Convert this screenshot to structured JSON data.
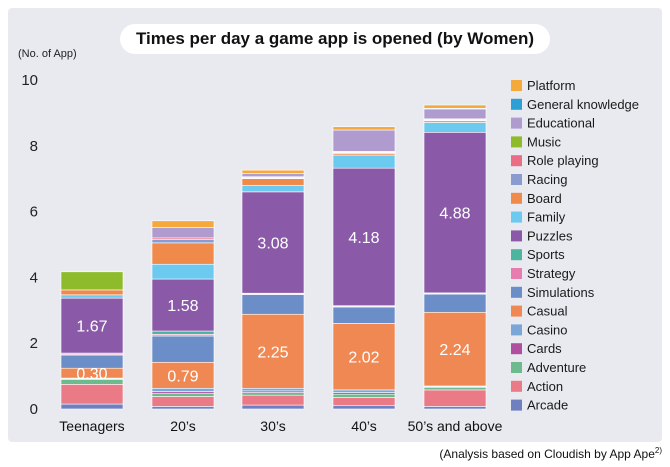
{
  "title": "Times per day a game app is opened (by Women)",
  "unit_label": "(No. of App)",
  "footnote": "(Analysis based on Cloudish by App Ape",
  "footnote_sup": "2)",
  "chart_data": {
    "type": "bar",
    "stacked": true,
    "categories": [
      "Teenagers",
      "20’s",
      "30’s",
      "40’s",
      "50’s and above"
    ],
    "ylim": [
      0,
      10
    ],
    "yticks": [
      0,
      2,
      4,
      6,
      8,
      10
    ],
    "ylabel": "(No. of App)",
    "legend_position": "right",
    "series": [
      {
        "name": "Arcade",
        "color": "#6f7fc0",
        "values": [
          0.15,
          0.08,
          0.12,
          0.1,
          0.08
        ]
      },
      {
        "name": "Action",
        "color": "#ea7a86",
        "values": [
          0.6,
          0.3,
          0.3,
          0.25,
          0.5
        ]
      },
      {
        "name": "Adventure",
        "color": "#6dba8f",
        "values": [
          0.15,
          0.1,
          0.08,
          0.1,
          0.08
        ]
      },
      {
        "name": "Cards",
        "color": "#b04fa0",
        "values": [
          0.02,
          0.05,
          0.05,
          0.05,
          0.02
        ]
      },
      {
        "name": "Casino",
        "color": "#7aa7d8",
        "values": [
          0.02,
          0.1,
          0.08,
          0.08,
          0.02
        ]
      },
      {
        "name": "Casual",
        "color": "#ef8852",
        "values": [
          0.3,
          0.79,
          2.25,
          2.02,
          2.24
        ]
      },
      {
        "name": "Simulations",
        "color": "#6b8ec8",
        "values": [
          0.4,
          0.8,
          0.6,
          0.5,
          0.55
        ]
      },
      {
        "name": "Strategy",
        "color": "#e97cae",
        "values": [
          0.03,
          0.05,
          0.02,
          0.02,
          0.02
        ]
      },
      {
        "name": "Sports",
        "color": "#4cb5a0",
        "values": [
          0.03,
          0.1,
          0.02,
          0.02,
          0.02
        ]
      },
      {
        "name": "Puzzles",
        "color": "#8a5aa8",
        "values": [
          1.67,
          1.58,
          3.08,
          4.18,
          4.88
        ]
      },
      {
        "name": "Family",
        "color": "#6cc9ef",
        "values": [
          0.1,
          0.45,
          0.2,
          0.4,
          0.3
        ]
      },
      {
        "name": "Board",
        "color": "#f08a4b",
        "values": [
          0.15,
          0.65,
          0.2,
          0.05,
          0.05
        ]
      },
      {
        "name": "Racing",
        "color": "#8a9bd0",
        "values": [
          0.0,
          0.1,
          0.02,
          0.02,
          0.02
        ]
      },
      {
        "name": "Role playing",
        "color": "#ea6d85",
        "values": [
          0.0,
          0.05,
          0.02,
          0.02,
          0.02
        ]
      },
      {
        "name": "Music",
        "color": "#8dbb2b",
        "values": [
          0.55,
          0.0,
          0.02,
          0.02,
          0.02
        ]
      },
      {
        "name": "Educational",
        "color": "#b09bcf",
        "values": [
          0.0,
          0.32,
          0.1,
          0.65,
          0.3
        ]
      },
      {
        "name": "General knowledge",
        "color": "#2b9fd6",
        "values": [
          0.0,
          0.0,
          0.0,
          0.0,
          0.02
        ]
      },
      {
        "name": "Platform",
        "color": "#f5a93a",
        "values": [
          0.0,
          0.2,
          0.1,
          0.1,
          0.1
        ]
      }
    ],
    "data_labels": [
      {
        "category": "Teenagers",
        "series": "Casual",
        "text": "0.30"
      },
      {
        "category": "Teenagers",
        "series": "Puzzles",
        "text": "1.67"
      },
      {
        "category": "20’s",
        "series": "Casual",
        "text": "0.79"
      },
      {
        "category": "20’s",
        "series": "Puzzles",
        "text": "1.58"
      },
      {
        "category": "30’s",
        "series": "Casual",
        "text": "2.25"
      },
      {
        "category": "30’s",
        "series": "Puzzles",
        "text": "3.08"
      },
      {
        "category": "40’s",
        "series": "Casual",
        "text": "2.02"
      },
      {
        "category": "40’s",
        "series": "Puzzles",
        "text": "4.18"
      },
      {
        "category": "50’s and above",
        "series": "Casual",
        "text": "2.24"
      },
      {
        "category": "50’s and above",
        "series": "Puzzles",
        "text": "4.88"
      }
    ]
  }
}
